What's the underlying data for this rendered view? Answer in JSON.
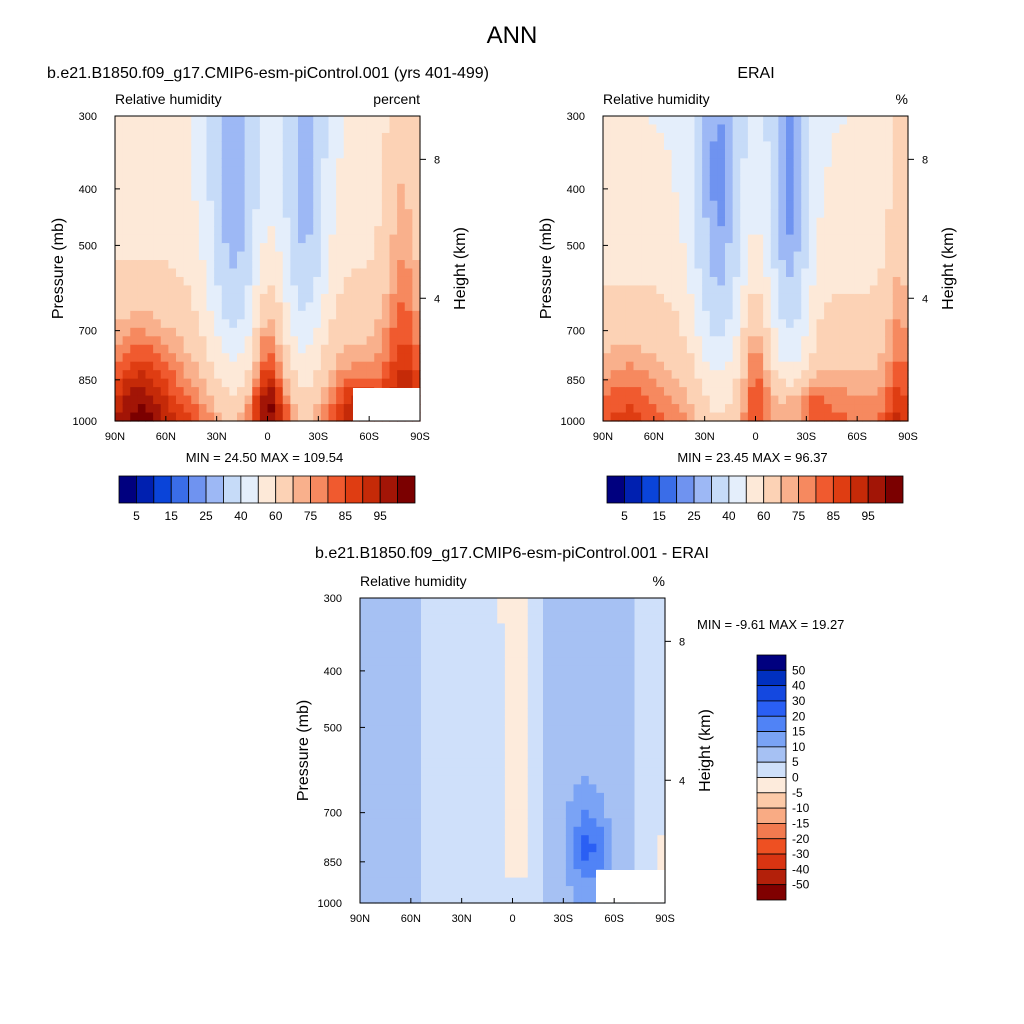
{
  "page_title": "ANN",
  "scales": {
    "abs_colors": [
      "#00007f",
      "#0020b0",
      "#0a44d9",
      "#3a6de8",
      "#6f93f0",
      "#9db8f5",
      "#c6dbf8",
      "#e4eefb",
      "#fde9d8",
      "#fcd2b5",
      "#f9b08c",
      "#f6895f",
      "#f05a2f",
      "#df3d12",
      "#c52a08",
      "#a21506",
      "#7b0000"
    ],
    "abs_labels": [
      "5",
      "15",
      "25",
      "40",
      "60",
      "75",
      "85",
      "95"
    ],
    "diff_colors": [
      "#00007f",
      "#0030c0",
      "#1448e0",
      "#2a5ff4",
      "#5083f6",
      "#7aa3f5",
      "#a6c1f3",
      "#cfe0fa",
      "#fdebdc",
      "#fccaa8",
      "#f9ab84",
      "#f27a4f",
      "#ee5022",
      "#d93412",
      "#b3200a",
      "#800000"
    ],
    "diff_labels": [
      "50",
      "40",
      "30",
      "20",
      "15",
      "10",
      "5",
      "0",
      "-5",
      "-10",
      "-15",
      "-20",
      "-30",
      "-40",
      "-50"
    ]
  },
  "chart_data": [
    {
      "type": "heatmap",
      "panel": "model",
      "title": "b.e21.B1850.f09_g17.CMIP6-esm-piControl.001 (yrs 401-499)",
      "left_label": "Relative humidity",
      "right_label": "percent",
      "ylabel": "Pressure (mb)",
      "y2label": "Height (km)",
      "x_ticks": [
        "90N",
        "60N",
        "30N",
        "0",
        "30S",
        "60S",
        "90S"
      ],
      "y_ticks": [
        "300",
        "400",
        "500",
        "700",
        "850",
        "1000"
      ],
      "y2_ticks": [
        "8",
        "4"
      ],
      "min_max": "MIN =  24.50  MAX = 109.54",
      "x": [
        -90,
        90
      ],
      "y": [
        300,
        1000
      ],
      "min": 24.5,
      "max": 109.54
    },
    {
      "type": "heatmap",
      "panel": "obs",
      "title": "ERAI",
      "left_label": "Relative humidity",
      "right_label": "%",
      "ylabel": "Pressure (mb)",
      "y2label": "Height (km)",
      "x_ticks": [
        "90N",
        "60N",
        "30N",
        "0",
        "30S",
        "60S",
        "90S"
      ],
      "y_ticks": [
        "300",
        "400",
        "500",
        "700",
        "850",
        "1000"
      ],
      "y2_ticks": [
        "8",
        "4"
      ],
      "min_max": "MIN =  23.45  MAX =  96.37",
      "x": [
        -90,
        90
      ],
      "y": [
        300,
        1000
      ],
      "min": 23.45,
      "max": 96.37
    },
    {
      "type": "heatmap",
      "panel": "diff",
      "title": "b.e21.B1850.f09_g17.CMIP6-esm-piControl.001 - ERAI",
      "left_label": "Relative humidity",
      "right_label": "%",
      "ylabel": "Pressure (mb)",
      "y2label": "Height (km)",
      "x_ticks": [
        "90N",
        "60N",
        "30N",
        "0",
        "30S",
        "60S",
        "90S"
      ],
      "y_ticks": [
        "300",
        "400",
        "500",
        "700",
        "850",
        "1000"
      ],
      "y2_ticks": [
        "8",
        "4"
      ],
      "min_max": "MIN =  -9.61  MAX =  19.27",
      "x": [
        -90,
        90
      ],
      "y": [
        300,
        1000
      ],
      "min": -9.61,
      "max": 19.27
    }
  ]
}
